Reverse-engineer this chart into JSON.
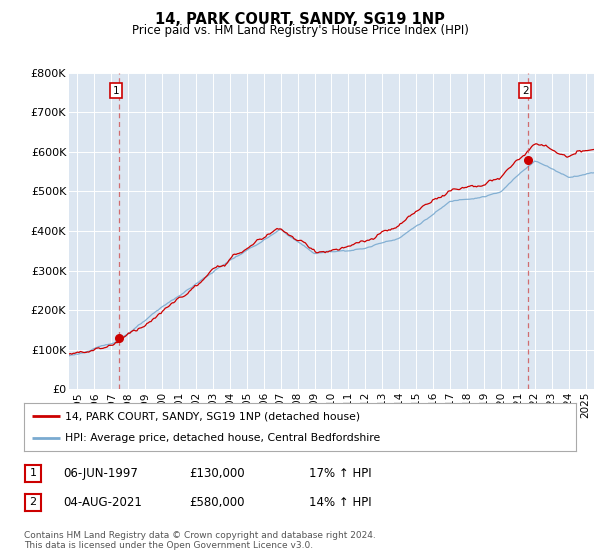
{
  "title": "14, PARK COURT, SANDY, SG19 1NP",
  "subtitle": "Price paid vs. HM Land Registry's House Price Index (HPI)",
  "background_color": "#ffffff",
  "plot_bg_color": "#dce6f1",
  "grid_color": "#ffffff",
  "sale1_year": 1997.44,
  "sale1_price": 130000,
  "sale1_label": "1",
  "sale1_date": "06-JUN-1997",
  "sale2_year": 2021.59,
  "sale2_price": 580000,
  "sale2_label": "2",
  "sale2_date": "04-AUG-2021",
  "ylim": [
    0,
    800000
  ],
  "xlim": [
    1994.5,
    2025.5
  ],
  "yticks": [
    0,
    100000,
    200000,
    300000,
    400000,
    500000,
    600000,
    700000,
    800000
  ],
  "ytick_labels": [
    "£0",
    "£100K",
    "£200K",
    "£300K",
    "£400K",
    "£500K",
    "£600K",
    "£700K",
    "£800K"
  ],
  "xticks": [
    1995,
    1996,
    1997,
    1998,
    1999,
    2000,
    2001,
    2002,
    2003,
    2004,
    2005,
    2006,
    2007,
    2008,
    2009,
    2010,
    2011,
    2012,
    2013,
    2014,
    2015,
    2016,
    2017,
    2018,
    2019,
    2020,
    2021,
    2022,
    2023,
    2024,
    2025
  ],
  "legend_line1": "14, PARK COURT, SANDY, SG19 1NP (detached house)",
  "legend_line2": "HPI: Average price, detached house, Central Bedfordshire",
  "line1_color": "#cc0000",
  "line2_color": "#7aaad0",
  "footer": "Contains HM Land Registry data © Crown copyright and database right 2024.\nThis data is licensed under the Open Government Licence v3.0.",
  "annot1_hpi_pct": "17% ↑ HPI",
  "annot2_hpi_pct": "14% ↑ HPI"
}
